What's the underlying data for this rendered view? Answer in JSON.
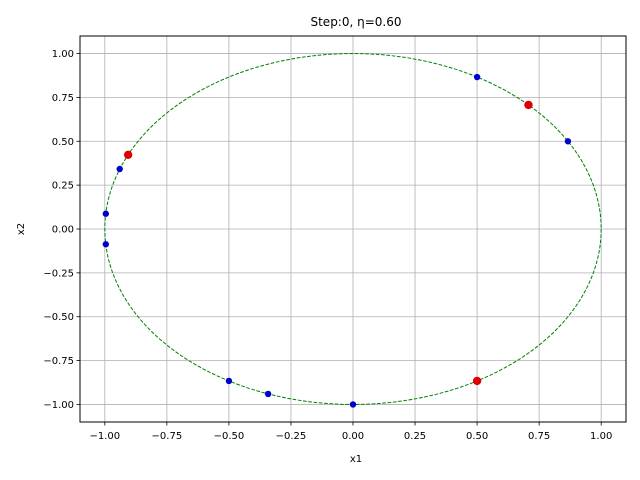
{
  "chart_data": {
    "type": "scatter",
    "title": "Step:0, η=0.60",
    "xlabel": "x1",
    "ylabel": "x2",
    "xlim": [
      -1.1,
      1.1
    ],
    "ylim": [
      -1.1,
      1.1
    ],
    "grid": true,
    "x_ticks": [
      -1.0,
      -0.75,
      -0.5,
      -0.25,
      0.0,
      0.25,
      0.5,
      0.75,
      1.0
    ],
    "x_tick_labels": [
      "−1.00",
      "−0.75",
      "−0.50",
      "−0.25",
      "0.00",
      "0.25",
      "0.50",
      "0.75",
      "1.00"
    ],
    "y_ticks": [
      1.0,
      0.75,
      0.5,
      0.25,
      0.0,
      -0.25,
      -0.5,
      -0.75,
      -1.0
    ],
    "y_tick_labels": [
      "1.00",
      "0.75",
      "0.50",
      "0.25",
      "0.00",
      "−0.25",
      "−0.50",
      "−0.75",
      "−1.00"
    ],
    "reference_curve": {
      "shape": "unit-circle",
      "center": [
        0,
        0
      ],
      "radius": 1.0,
      "color": "#008000",
      "style": "dashed"
    },
    "series": [
      {
        "color": "#0000cc",
        "points": [
          {
            "x": 0.5,
            "y": 0.866
          },
          {
            "x": 0.866,
            "y": 0.5
          },
          {
            "x": -0.94,
            "y": 0.342
          },
          {
            "x": -0.996,
            "y": 0.087
          },
          {
            "x": -0.996,
            "y": -0.087
          },
          {
            "x": -0.5,
            "y": -0.866
          },
          {
            "x": -0.342,
            "y": -0.94
          },
          {
            "x": 0.0,
            "y": -1.0
          }
        ]
      },
      {
        "color": "#dd0000",
        "points": [
          {
            "x": 0.707,
            "y": 0.707
          },
          {
            "x": -0.906,
            "y": 0.423
          },
          {
            "x": 0.5,
            "y": -0.866
          }
        ]
      }
    ]
  }
}
